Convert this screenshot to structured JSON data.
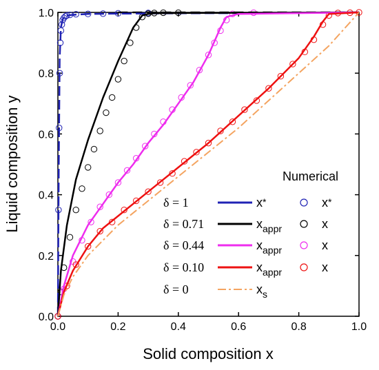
{
  "chart_data": {
    "type": "line",
    "xlabel": "Solid composition x",
    "ylabel": "Liquid composition y",
    "xlim": [
      0.0,
      1.0
    ],
    "ylim": [
      0.0,
      1.0
    ],
    "xticks": [
      "0.0",
      "0.2",
      "0.4",
      "0.6",
      "0.8",
      "1.0"
    ],
    "yticks": [
      "0.0",
      "0.2",
      "0.4",
      "0.6",
      "0.8",
      "1.0"
    ],
    "grid": false,
    "legend_position": "bottom-right",
    "legend_numerical_header": "Numerical",
    "series": [
      {
        "name": "δ = 1",
        "line_label": "x*",
        "marker_label": "x*",
        "line_color": "#1f22b4",
        "line_style": "dashed",
        "line_x": [
          0.0,
          0.003,
          0.006,
          0.01,
          0.015,
          0.02,
          0.03,
          0.05,
          0.1,
          0.2,
          0.4,
          0.7,
          1.0
        ],
        "line_y": [
          0.0,
          0.5,
          0.85,
          0.95,
          0.975,
          0.985,
          0.99,
          0.992,
          0.995,
          0.996,
          0.997,
          0.998,
          1.0
        ],
        "marker_x": [
          0.0,
          0.002,
          0.004,
          0.006,
          0.008,
          0.01,
          0.013,
          0.016,
          0.02,
          0.025,
          0.03,
          0.04,
          0.06,
          0.1,
          0.15,
          0.2,
          0.3
        ],
        "marker_y": [
          0.0,
          0.35,
          0.62,
          0.8,
          0.9,
          0.94,
          0.96,
          0.975,
          0.982,
          0.987,
          0.99,
          0.992,
          0.994,
          0.995,
          0.996,
          0.997,
          0.998
        ]
      },
      {
        "name": "δ = 0.71",
        "line_label": "x_appr",
        "marker_label": "x",
        "line_color": "#000000",
        "line_style": "solid",
        "line_x": [
          0.0,
          0.01,
          0.03,
          0.06,
          0.1,
          0.15,
          0.2,
          0.25,
          0.28,
          0.3,
          0.32,
          0.4,
          1.0
        ],
        "line_y": [
          0.0,
          0.15,
          0.3,
          0.45,
          0.58,
          0.72,
          0.84,
          0.95,
          0.99,
          0.995,
          0.997,
          0.998,
          1.0
        ],
        "marker_x": [
          0.0,
          0.01,
          0.02,
          0.04,
          0.06,
          0.08,
          0.1,
          0.12,
          0.14,
          0.16,
          0.18,
          0.2,
          0.22,
          0.24,
          0.26,
          0.28,
          0.3,
          0.32,
          0.35,
          0.4
        ],
        "marker_y": [
          0.0,
          0.08,
          0.16,
          0.26,
          0.35,
          0.42,
          0.49,
          0.55,
          0.61,
          0.67,
          0.72,
          0.78,
          0.84,
          0.9,
          0.95,
          0.985,
          0.996,
          0.998,
          0.999,
          0.999
        ]
      },
      {
        "name": "δ = 0.44",
        "line_label": "x_appr",
        "marker_label": "x",
        "line_color": "#ee2cee",
        "line_style": "solid",
        "line_x": [
          0.0,
          0.02,
          0.05,
          0.1,
          0.15,
          0.2,
          0.25,
          0.3,
          0.35,
          0.4,
          0.45,
          0.5,
          0.54,
          0.56,
          0.6,
          1.0
        ],
        "line_y": [
          0.0,
          0.1,
          0.2,
          0.3,
          0.37,
          0.44,
          0.5,
          0.57,
          0.63,
          0.7,
          0.77,
          0.86,
          0.95,
          0.985,
          0.995,
          1.0
        ],
        "marker_x": [
          0.0,
          0.02,
          0.05,
          0.08,
          0.11,
          0.14,
          0.17,
          0.2,
          0.23,
          0.26,
          0.29,
          0.32,
          0.35,
          0.38,
          0.41,
          0.44,
          0.47,
          0.5,
          0.52,
          0.54,
          0.56,
          0.58,
          0.65
        ],
        "marker_y": [
          0.0,
          0.09,
          0.18,
          0.25,
          0.31,
          0.36,
          0.4,
          0.44,
          0.48,
          0.52,
          0.56,
          0.6,
          0.64,
          0.68,
          0.72,
          0.76,
          0.81,
          0.86,
          0.9,
          0.94,
          0.975,
          0.995,
          0.999
        ]
      },
      {
        "name": "δ = 0.10",
        "line_label": "x_appr",
        "marker_label": "x",
        "line_color": "#ee1111",
        "line_style": "solid",
        "line_x": [
          0.0,
          0.02,
          0.05,
          0.1,
          0.15,
          0.2,
          0.3,
          0.4,
          0.5,
          0.6,
          0.7,
          0.8,
          0.85,
          0.88,
          0.9,
          1.0
        ],
        "line_y": [
          0.0,
          0.08,
          0.15,
          0.23,
          0.29,
          0.33,
          0.41,
          0.49,
          0.57,
          0.66,
          0.75,
          0.85,
          0.92,
          0.97,
          0.995,
          1.0
        ],
        "marker_x": [
          0.0,
          0.03,
          0.06,
          0.1,
          0.14,
          0.18,
          0.22,
          0.26,
          0.3,
          0.34,
          0.38,
          0.42,
          0.46,
          0.5,
          0.54,
          0.58,
          0.62,
          0.66,
          0.7,
          0.74,
          0.78,
          0.82,
          0.85,
          0.88,
          0.9,
          0.93,
          0.97,
          1.0
        ],
        "marker_y": [
          0.0,
          0.1,
          0.17,
          0.23,
          0.28,
          0.31,
          0.35,
          0.38,
          0.41,
          0.44,
          0.47,
          0.51,
          0.54,
          0.57,
          0.61,
          0.64,
          0.68,
          0.71,
          0.75,
          0.79,
          0.83,
          0.87,
          0.91,
          0.96,
          0.99,
          0.998,
          0.999,
          1.0
        ]
      },
      {
        "name": "δ = 0",
        "line_label": "x_s",
        "line_color": "#f4a460",
        "line_style": "dashdot",
        "line_x": [
          0.0,
          0.02,
          0.05,
          0.1,
          0.2,
          0.3,
          0.4,
          0.5,
          0.6,
          0.7,
          0.8,
          0.9,
          1.0
        ],
        "line_y": [
          0.0,
          0.07,
          0.13,
          0.2,
          0.3,
          0.38,
          0.46,
          0.54,
          0.62,
          0.71,
          0.8,
          0.89,
          1.0
        ]
      }
    ],
    "reference_line": {
      "y": 1.0,
      "style": "dashed",
      "color": "#000000"
    }
  },
  "legend": {
    "header": "Numerical",
    "rows": [
      {
        "delta": "δ = 1",
        "line_main": "x",
        "line_sub": "*",
        "line_sub_type": "sup",
        "marker_main": "x",
        "marker_sub": "*",
        "marker_sub_type": "sup"
      },
      {
        "delta": "δ = 0.71",
        "line_main": "x",
        "line_sub": "appr",
        "line_sub_type": "sub",
        "marker_main": "x",
        "marker_sub": "",
        "marker_sub_type": "none"
      },
      {
        "delta": "δ = 0.44",
        "line_main": "x",
        "line_sub": "appr",
        "line_sub_type": "sub",
        "marker_main": "x",
        "marker_sub": "",
        "marker_sub_type": "none"
      },
      {
        "delta": "δ = 0.10",
        "line_main": "x",
        "line_sub": "appr",
        "line_sub_type": "sub",
        "marker_main": "x",
        "marker_sub": "",
        "marker_sub_type": "none"
      },
      {
        "delta": "δ = 0",
        "line_main": "x",
        "line_sub": "s",
        "line_sub_type": "sub",
        "marker_main": "",
        "marker_sub": "",
        "marker_sub_type": "none"
      }
    ]
  }
}
